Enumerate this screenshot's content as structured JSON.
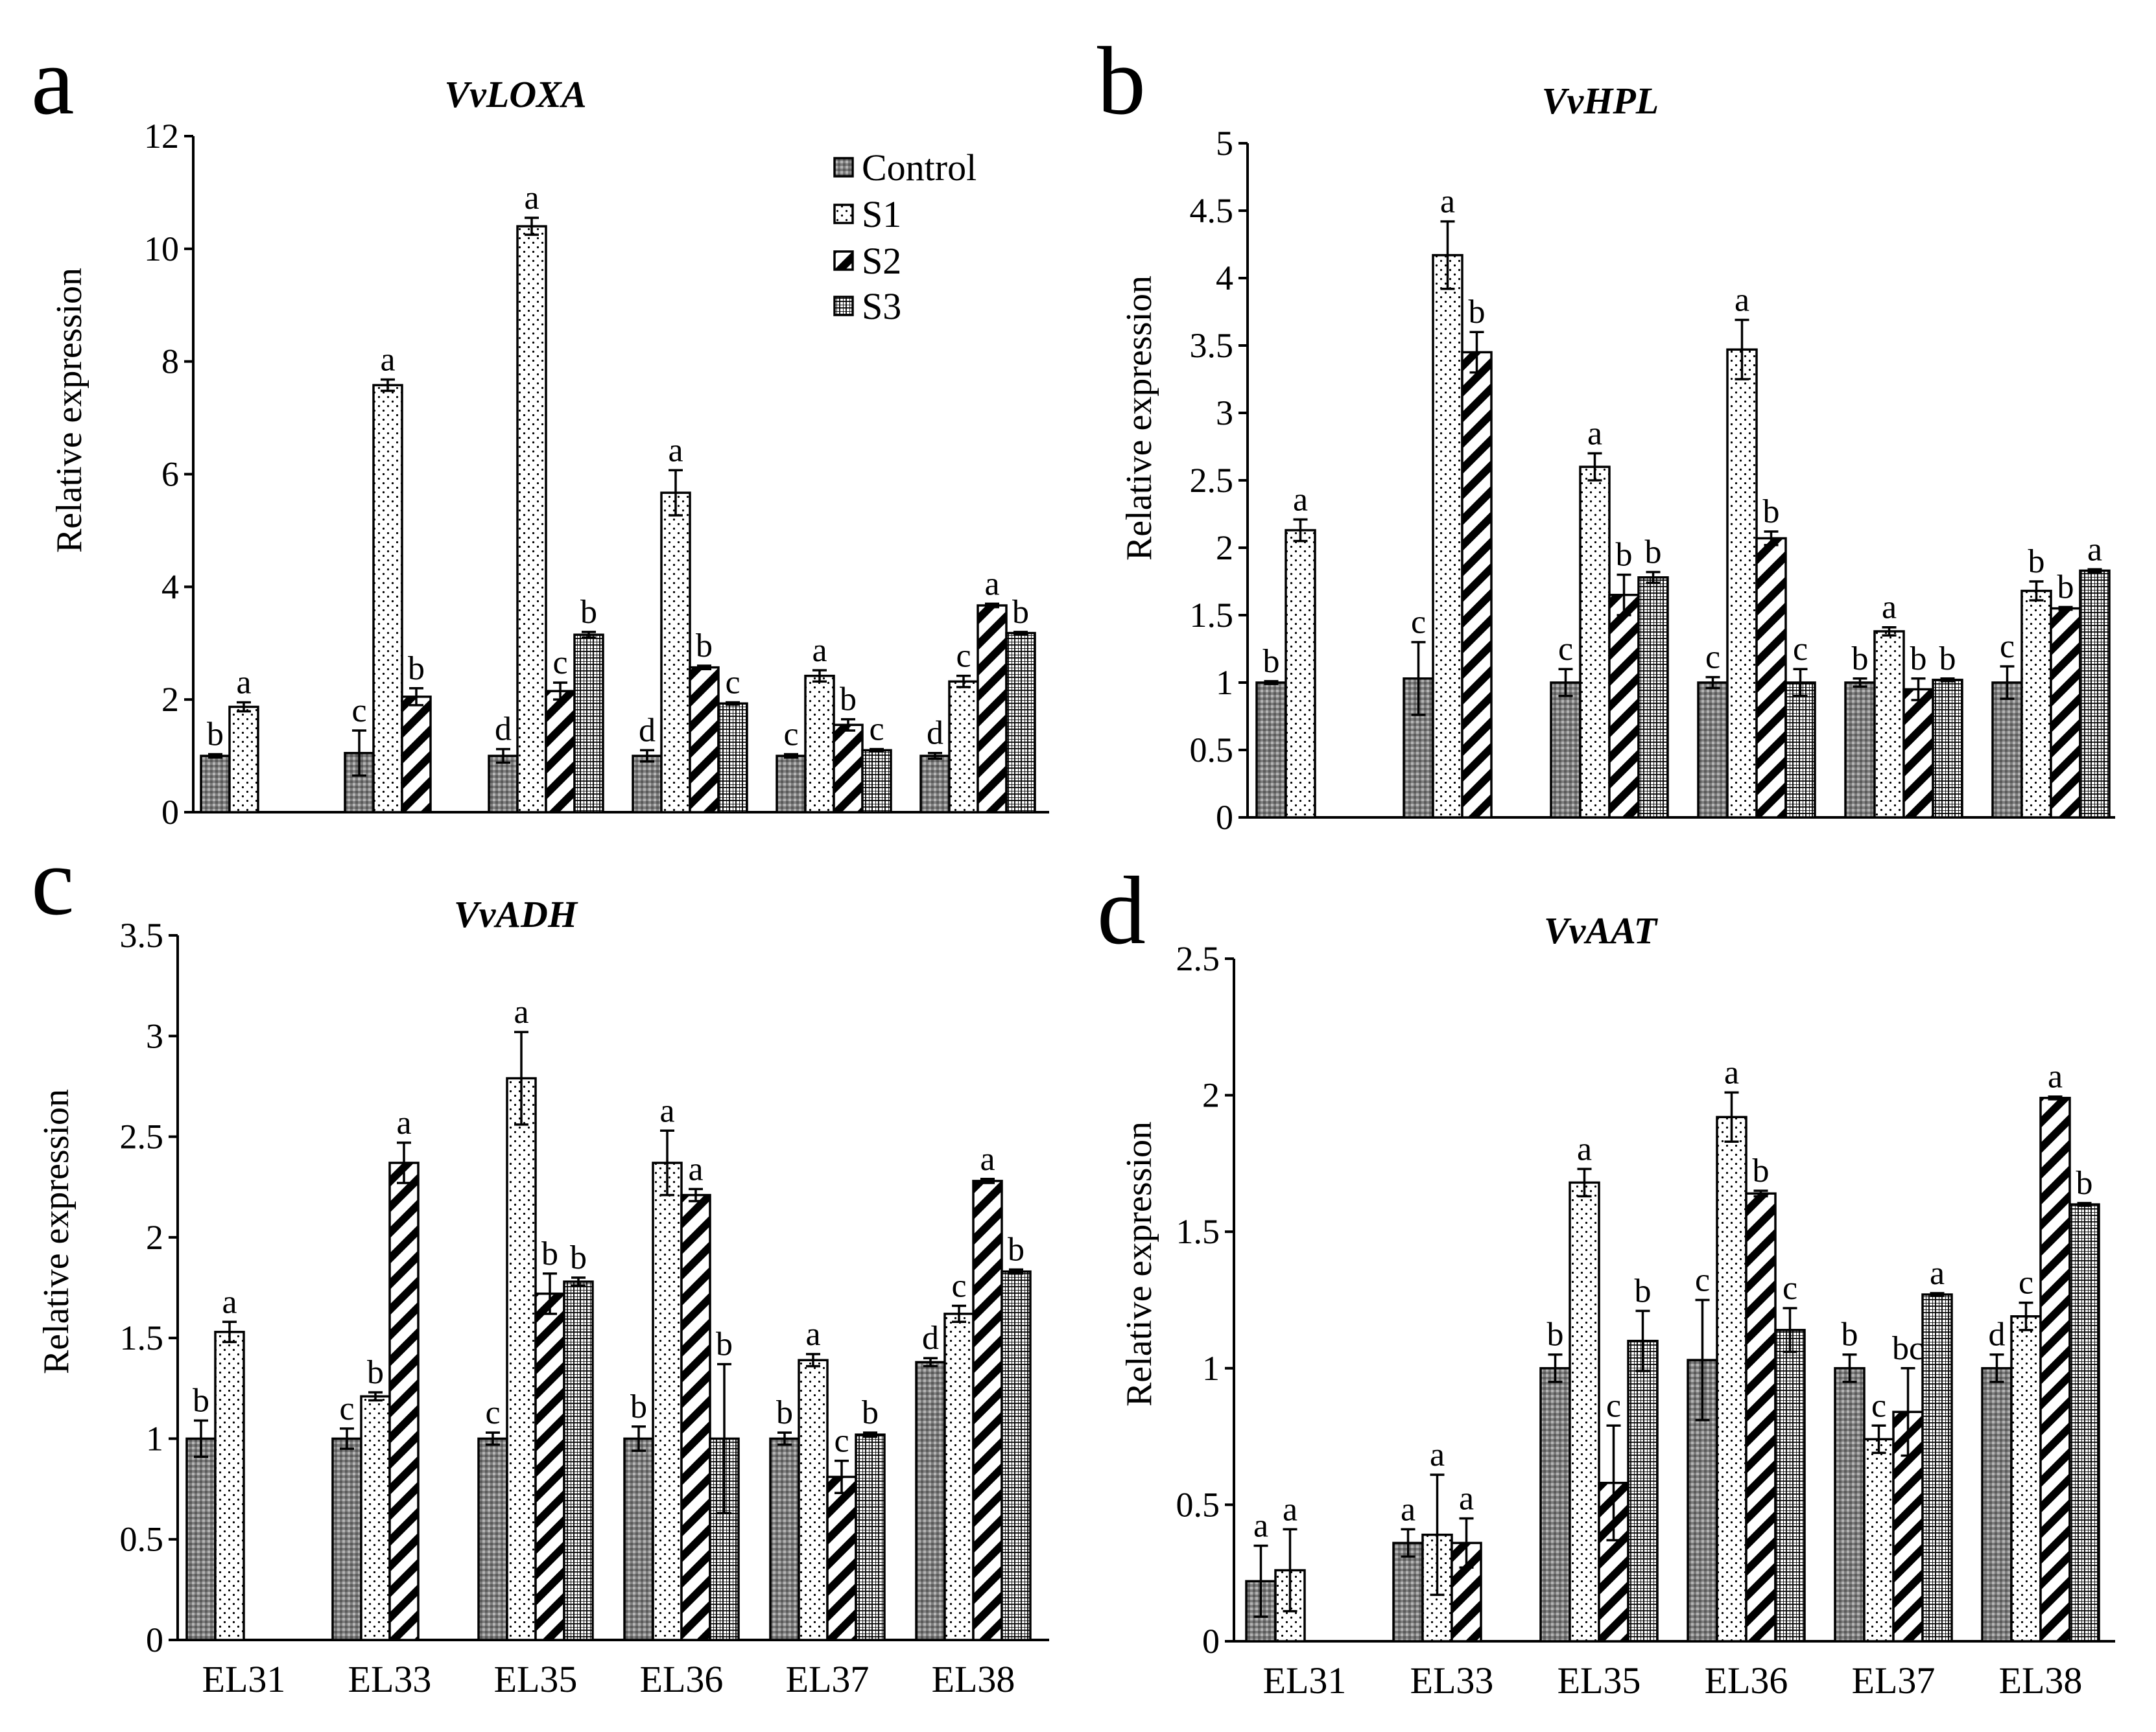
{
  "series_names": [
    "Control",
    "S1",
    "S2",
    "S3"
  ],
  "categories": [
    "EL31",
    "EL33",
    "EL35",
    "EL36",
    "EL37",
    "EL38"
  ],
  "chart_data": [
    {
      "panel": "a",
      "type": "bar",
      "title": "VvLOXA",
      "ylabel": "Relative expression",
      "ylim": [
        0,
        12
      ],
      "yticks": [
        "0",
        "2",
        "4",
        "6",
        "8",
        "10",
        "12"
      ],
      "show_xticks": false,
      "legend": "top-right",
      "categories": [
        "EL31",
        "EL33",
        "EL35",
        "EL36",
        "EL37",
        "EL38"
      ],
      "series": [
        {
          "name": "Control",
          "values": [
            1.0,
            1.05,
            1.0,
            1.0,
            1.0,
            1.0
          ],
          "errors": [
            0.03,
            0.4,
            0.12,
            0.1,
            0.03,
            0.05
          ],
          "sig": [
            "b",
            "c",
            "d",
            "d",
            "c",
            "d"
          ]
        },
        {
          "name": "S1",
          "values": [
            1.87,
            7.58,
            10.4,
            5.67,
            2.42,
            2.32
          ],
          "errors": [
            0.08,
            0.1,
            0.15,
            0.4,
            0.1,
            0.1
          ],
          "sig": [
            "a",
            "a",
            "a",
            "a",
            "a",
            "c"
          ]
        },
        {
          "name": "S2",
          "values": [
            null,
            2.05,
            2.15,
            2.57,
            1.55,
            3.67
          ],
          "errors": [
            null,
            0.15,
            0.15,
            0.03,
            0.1,
            0.03
          ],
          "sig": [
            "",
            "b",
            "c",
            "b",
            "b",
            "a"
          ]
        },
        {
          "name": "S3",
          "values": [
            null,
            null,
            3.15,
            1.93,
            1.1,
            3.18
          ],
          "errors": [
            null,
            null,
            0.05,
            0.02,
            0.02,
            0.02
          ],
          "sig": [
            "",
            "",
            "b",
            "c",
            "c",
            "b"
          ]
        }
      ]
    },
    {
      "panel": "b",
      "type": "bar",
      "title": "VvHPL",
      "ylabel": "Relative expression",
      "ylim": [
        0,
        5
      ],
      "yticks": [
        "0",
        "0.5",
        "1",
        "1.5",
        "2",
        "2.5",
        "3",
        "3.5",
        "4",
        "4.5",
        "5"
      ],
      "show_xticks": false,
      "categories": [
        "EL31",
        "EL33",
        "EL35",
        "EL36",
        "EL37",
        "EL38"
      ],
      "series": [
        {
          "name": "Control",
          "values": [
            1.0,
            1.03,
            1.0,
            1.0,
            1.0,
            1.0
          ],
          "errors": [
            0.01,
            0.27,
            0.1,
            0.04,
            0.03,
            0.12
          ],
          "sig": [
            "b",
            "c",
            "c",
            "c",
            "b",
            "c"
          ]
        },
        {
          "name": "S1",
          "values": [
            2.13,
            4.17,
            2.6,
            3.47,
            1.38,
            1.68
          ],
          "errors": [
            0.08,
            0.25,
            0.1,
            0.22,
            0.03,
            0.07
          ],
          "sig": [
            "a",
            "a",
            "a",
            "a",
            "a",
            "b"
          ]
        },
        {
          "name": "S2",
          "values": [
            null,
            3.45,
            1.65,
            2.07,
            0.95,
            1.55
          ],
          "errors": [
            null,
            0.15,
            0.15,
            0.05,
            0.08,
            0.01
          ],
          "sig": [
            "",
            "b",
            "b",
            "b",
            "b",
            "b"
          ]
        },
        {
          "name": "S3",
          "values": [
            null,
            null,
            1.78,
            1.0,
            1.02,
            1.83
          ],
          "errors": [
            null,
            null,
            0.04,
            0.1,
            0.01,
            0.01
          ],
          "sig": [
            "",
            "",
            "b",
            "c",
            "b",
            "a"
          ]
        }
      ]
    },
    {
      "panel": "c",
      "type": "bar",
      "title": "VvADH",
      "ylabel": "Relative expression",
      "ylim": [
        0,
        3.5
      ],
      "yticks": [
        "0",
        "0.5",
        "1",
        "1.5",
        "2",
        "2.5",
        "3",
        "3.5"
      ],
      "show_xticks": true,
      "categories": [
        "EL31",
        "EL33",
        "EL35",
        "EL36",
        "EL37",
        "EL38"
      ],
      "series": [
        {
          "name": "Control",
          "values": [
            1.0,
            1.0,
            1.0,
            1.0,
            1.0,
            1.38
          ],
          "errors": [
            0.09,
            0.05,
            0.03,
            0.06,
            0.03,
            0.02
          ],
          "sig": [
            "b",
            "c",
            "c",
            "b",
            "b",
            "d"
          ]
        },
        {
          "name": "S1",
          "values": [
            1.53,
            1.21,
            2.79,
            2.37,
            1.39,
            1.62
          ],
          "errors": [
            0.05,
            0.02,
            0.23,
            0.16,
            0.03,
            0.04
          ],
          "sig": [
            "a",
            "b",
            "a",
            "a",
            "a",
            "c"
          ]
        },
        {
          "name": "S2",
          "values": [
            null,
            2.37,
            1.72,
            2.21,
            0.81,
            2.28
          ],
          "errors": [
            null,
            0.1,
            0.1,
            0.03,
            0.08,
            0.01
          ],
          "sig": [
            "",
            "a",
            "b",
            "a",
            "c",
            "a"
          ]
        },
        {
          "name": "S3",
          "values": [
            null,
            null,
            1.78,
            1.0,
            1.02,
            1.83
          ],
          "errors": [
            null,
            null,
            0.02,
            0.37,
            0.01,
            0.01
          ],
          "sig": [
            "",
            "",
            "b",
            "b",
            "b",
            "b"
          ]
        }
      ]
    },
    {
      "panel": "d",
      "type": "bar",
      "title": "VvAAT",
      "ylabel": "Relative expression",
      "ylim": [
        0,
        2.5
      ],
      "yticks": [
        "0",
        "0.5",
        "1",
        "1.5",
        "2",
        "2.5"
      ],
      "show_xticks": true,
      "categories": [
        "EL31",
        "EL33",
        "EL35",
        "EL36",
        "EL37",
        "EL38"
      ],
      "series": [
        {
          "name": "Control",
          "values": [
            0.22,
            0.36,
            1.0,
            1.03,
            1.0,
            1.0
          ],
          "errors": [
            0.13,
            0.05,
            0.05,
            0.22,
            0.05,
            0.05
          ],
          "sig": [
            "a",
            "a",
            "b",
            "c",
            "b",
            "d"
          ]
        },
        {
          "name": "S1",
          "values": [
            0.26,
            0.39,
            1.68,
            1.92,
            0.74,
            1.19
          ],
          "errors": [
            0.15,
            0.22,
            0.05,
            0.09,
            0.05,
            0.05
          ],
          "sig": [
            "a",
            "a",
            "a",
            "a",
            "c",
            "c"
          ]
        },
        {
          "name": "S2",
          "values": [
            null,
            0.36,
            0.58,
            1.64,
            0.84,
            1.99
          ],
          "errors": [
            null,
            0.09,
            0.21,
            0.01,
            0.16,
            0.005
          ],
          "sig": [
            "",
            "a",
            "c",
            "b",
            "bc",
            "a"
          ]
        },
        {
          "name": "S3",
          "values": [
            null,
            null,
            1.1,
            1.14,
            1.27,
            1.6
          ],
          "errors": [
            null,
            null,
            0.11,
            0.08,
            0.005,
            0.005
          ],
          "sig": [
            "",
            "",
            "b",
            "c",
            "a",
            "b"
          ]
        }
      ]
    }
  ]
}
